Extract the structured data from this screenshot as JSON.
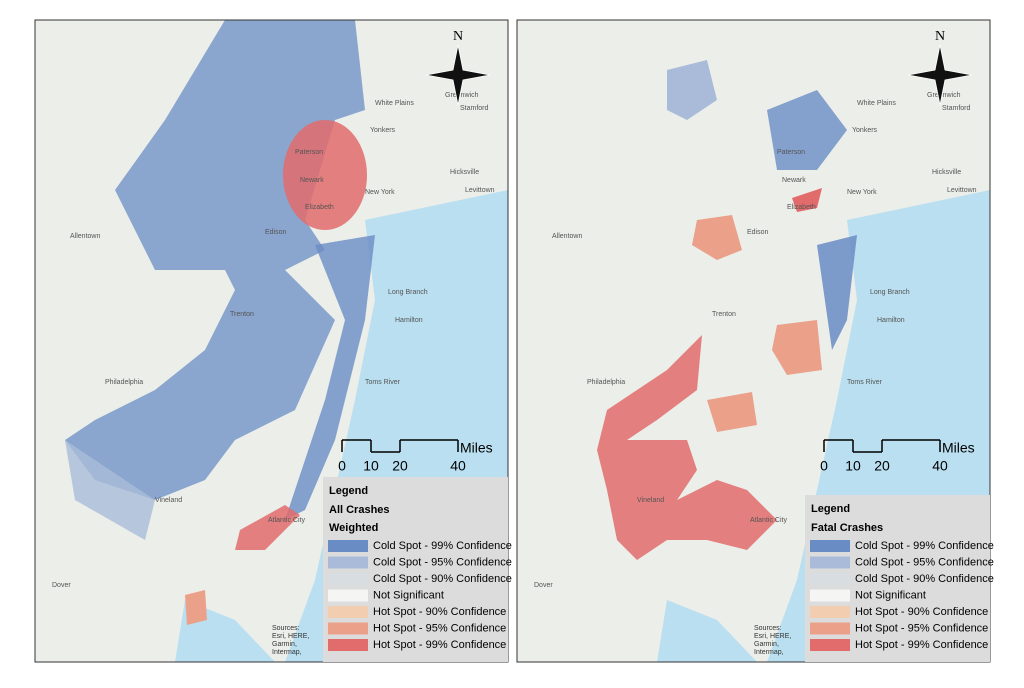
{
  "places": [
    "Philadelphia",
    "New York",
    "Allentown",
    "Trenton",
    "Long Branch",
    "Edison",
    "Newark",
    "Elizabeth",
    "Paterson",
    "Yonkers",
    "White Plains",
    "Hamilton",
    "Toms River",
    "Vineland",
    "Dover",
    "Stamford",
    "Greenwich",
    "Hicksville",
    "Levittown",
    "Atlantic City"
  ],
  "maps": [
    {
      "north": "N",
      "scale": {
        "ticks": [
          0,
          10,
          20,
          40
        ],
        "unit": "Miles"
      },
      "legend": {
        "title": "Legend",
        "subtitle": [
          "All Crashes",
          "Weighted"
        ],
        "items": [
          {
            "label": "Cold Spot - 99% Confidence",
            "color": "#6a8cc4"
          },
          {
            "label": "Cold Spot - 95% Confidence",
            "color": "#a9bbd8"
          },
          {
            "label": "Cold Spot - 90% Confidence",
            "color": "#d8dde2"
          },
          {
            "label": "Not Significant",
            "color": "#f5f5f3"
          },
          {
            "label": "Hot Spot - 90% Confidence",
            "color": "#f2cdb0"
          },
          {
            "label": "Hot Spot - 95% Confidence",
            "color": "#eba08a"
          },
          {
            "label": "Hot Spot - 99% Confidence",
            "color": "#e26b6b"
          }
        ]
      },
      "sources": [
        "Sources:",
        "Esri, HERE,",
        "Garmin,",
        "Intermap,"
      ]
    },
    {
      "north": "N",
      "scale": {
        "ticks": [
          0,
          10,
          20,
          40
        ],
        "unit": "Miles"
      },
      "legend": {
        "title": "Legend",
        "subtitle": [
          "Fatal Crashes"
        ],
        "items": [
          {
            "label": "Cold Spot - 99% Confidence",
            "color": "#6a8cc4"
          },
          {
            "label": "Cold Spot - 95% Confidence",
            "color": "#a9bbd8"
          },
          {
            "label": "Cold Spot - 90% Confidence",
            "color": "#d8dde2"
          },
          {
            "label": "Not Significant",
            "color": "#f5f5f3"
          },
          {
            "label": "Hot Spot - 90% Confidence",
            "color": "#f2cdb0"
          },
          {
            "label": "Hot Spot - 95% Confidence",
            "color": "#eba08a"
          },
          {
            "label": "Hot Spot - 99% Confidence",
            "color": "#e26b6b"
          }
        ]
      },
      "sources": [
        "Sources:",
        "Esri, HERE,",
        "Garmin,",
        "Intermap,"
      ]
    }
  ]
}
